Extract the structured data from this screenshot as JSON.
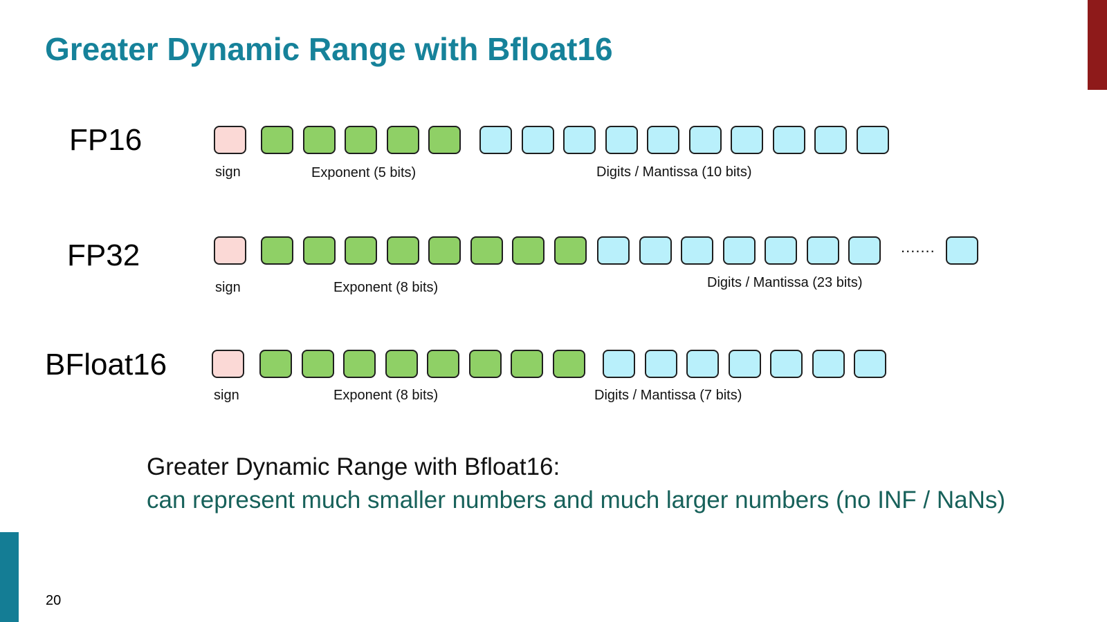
{
  "slide": {
    "title": "Greater Dynamic Range with Bfloat16",
    "page_number": "20",
    "accent_color": "#16829a",
    "corner_bar_color": "#8e1a1a"
  },
  "formats": [
    {
      "name": "FP16",
      "sign_bits": 1,
      "exponent_bits": 5,
      "mantissa_bits": 10,
      "mantissa_boxes_shown": 10,
      "sign_label": "sign",
      "exponent_label": "Exponent (5 bits)",
      "mantissa_label": "Digits / Mantissa (10 bits)"
    },
    {
      "name": "FP32",
      "sign_bits": 1,
      "exponent_bits": 8,
      "mantissa_bits": 23,
      "mantissa_boxes_shown": 8,
      "ellipsis": ".......",
      "sign_label": "sign",
      "exponent_label": "Exponent (8 bits)",
      "mantissa_label": "Digits / Mantissa (23 bits)"
    },
    {
      "name": "BFloat16",
      "sign_bits": 1,
      "exponent_bits": 8,
      "mantissa_bits": 7,
      "mantissa_boxes_shown": 7,
      "sign_label": "sign",
      "exponent_label": "Exponent (8 bits)",
      "mantissa_label": "Digits / Mantissa (7 bits)"
    }
  ],
  "colors": {
    "sign": "#fbd9d6",
    "exponent": "#8fd066",
    "mantissa": "#b9f0fb"
  },
  "summary": {
    "line1": "Greater Dynamic Range with Bfloat16:",
    "line2": "can represent much smaller numbers and much larger numbers (no INF / NaNs)"
  }
}
